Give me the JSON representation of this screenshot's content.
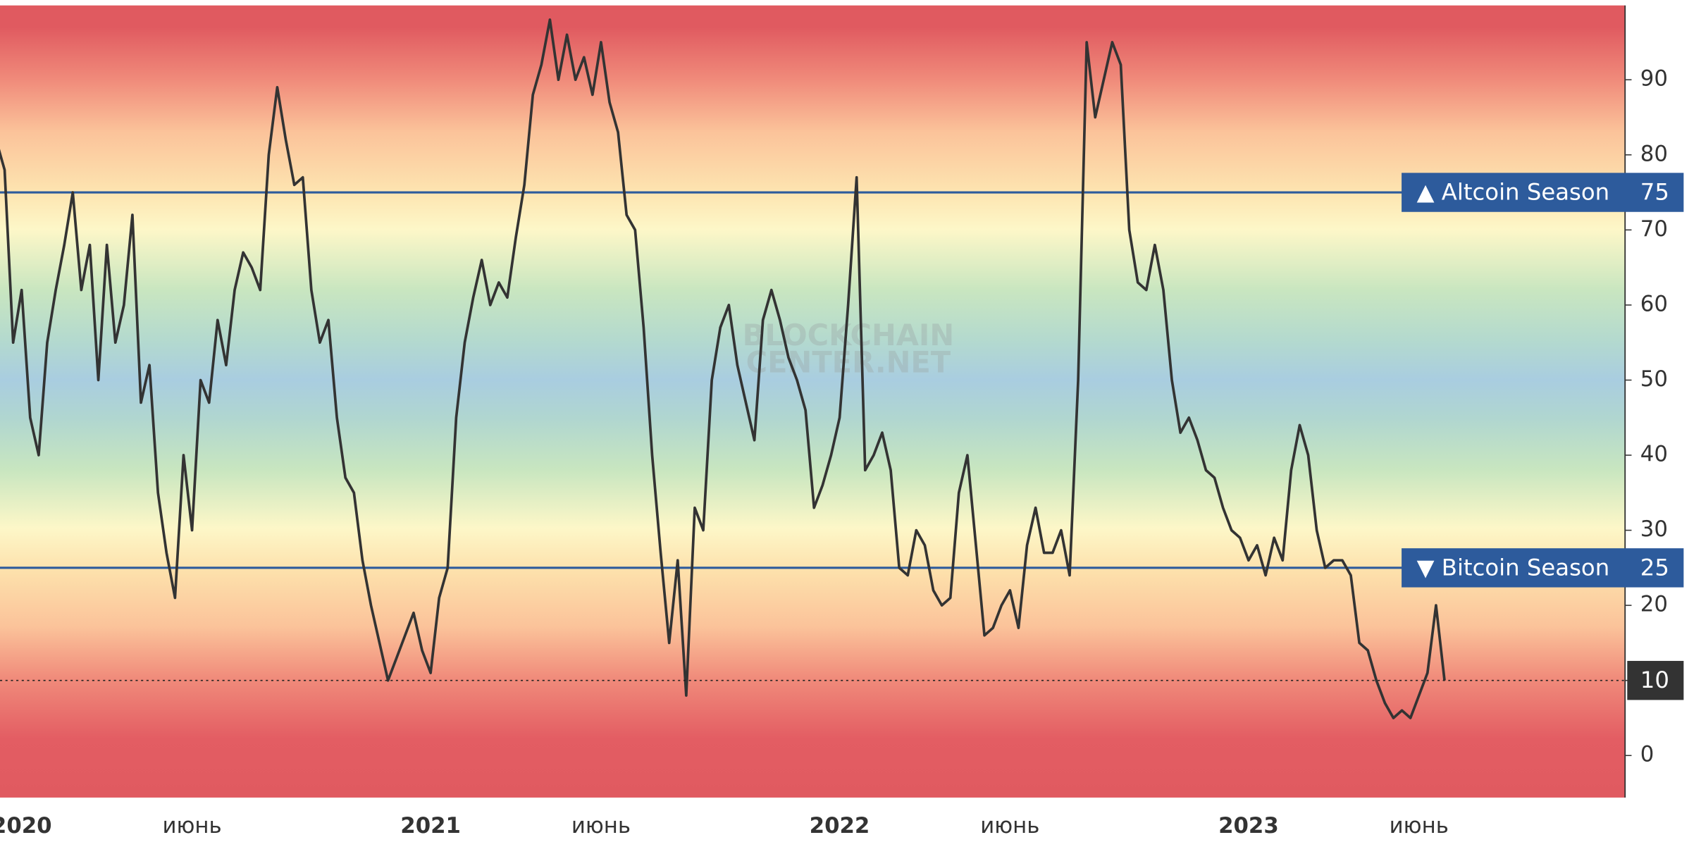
{
  "chart_data": {
    "type": "line",
    "categories": [
      null,
      null,
      null,
      "2020",
      null,
      null,
      null,
      null,
      null,
      null,
      null,
      null,
      null,
      null,
      null,
      null,
      null,
      null,
      null,
      null,
      null,
      null,
      null,
      "июнь",
      null,
      null,
      null,
      null,
      null,
      null,
      null,
      null,
      null,
      null,
      null,
      null,
      null,
      null,
      null,
      null,
      null,
      null,
      null,
      null,
      null,
      null,
      null,
      null,
      null,
      null,
      null,
      "2021",
      null,
      null,
      null,
      null,
      null,
      null,
      null,
      null,
      null,
      null,
      null,
      null,
      null,
      null,
      null,
      null,
      null,
      null,
      null,
      "июнь",
      null,
      null,
      null,
      null,
      null,
      null,
      null,
      null,
      null,
      null,
      null,
      null,
      null,
      null,
      null,
      null,
      null,
      null,
      null,
      null,
      null,
      null,
      null,
      null,
      null,
      null,
      null,
      "2022",
      null,
      null,
      null,
      null,
      null,
      null,
      null,
      null,
      null,
      null,
      null,
      null,
      null,
      null,
      null,
      null,
      null,
      null,
      null,
      "июнь",
      null,
      null,
      null,
      null,
      null,
      null,
      null,
      null,
      null,
      null,
      null,
      null,
      null,
      null,
      null,
      null,
      null,
      null,
      null,
      null,
      null,
      null,
      null,
      null,
      null,
      null,
      null,
      "2023",
      null,
      null,
      null,
      null,
      null,
      null,
      null,
      null,
      null,
      null,
      null,
      null,
      null,
      null,
      null,
      null,
      null,
      null,
      null,
      "июнь",
      null,
      null,
      null
    ],
    "values": [
      82,
      78,
      55,
      62,
      45,
      40,
      55,
      62,
      68,
      75,
      62,
      68,
      50,
      68,
      55,
      60,
      72,
      47,
      52,
      35,
      27,
      21,
      40,
      30,
      50,
      47,
      58,
      52,
      62,
      67,
      65,
      62,
      80,
      89,
      82,
      76,
      77,
      62,
      55,
      58,
      45,
      37,
      35,
      26,
      20,
      15,
      10,
      13,
      16,
      19,
      14,
      11,
      21,
      25,
      45,
      55,
      61,
      66,
      60,
      63,
      61,
      69,
      76,
      88,
      92,
      98,
      90,
      96,
      90,
      93,
      88,
      95,
      87,
      83,
      72,
      70,
      57,
      40,
      27,
      15,
      26,
      8,
      33,
      30,
      50,
      57,
      60,
      52,
      47,
      42,
      58,
      62,
      58,
      53,
      50,
      46,
      33,
      36,
      40,
      45,
      60,
      77,
      38,
      40,
      43,
      38,
      25,
      24,
      30,
      28,
      22,
      20,
      21,
      35,
      40,
      28,
      16,
      17,
      20,
      22,
      17,
      28,
      33,
      27,
      27,
      30,
      24,
      50,
      95,
      85,
      90,
      95,
      92,
      70,
      63,
      62,
      68,
      62,
      50,
      43,
      45,
      42,
      38,
      37,
      33,
      30,
      29,
      26,
      28,
      24,
      29,
      26,
      38,
      44,
      40,
      30,
      25,
      26,
      26,
      24,
      15,
      14,
      10,
      7,
      5,
      6,
      5,
      8,
      11,
      20,
      10
    ],
    "color": "#333333",
    "ylim": [
      -5.6,
      99.9
    ],
    "yticks": [
      0,
      10,
      20,
      30,
      40,
      50,
      60,
      70,
      80,
      90
    ],
    "reference_lines": [
      {
        "value": 75,
        "label": "▲ Altcoin Season",
        "color": "#2d5b9c"
      },
      {
        "value": 25,
        "label": "▼ Bitcoin Season",
        "color": "#2d5b9c"
      }
    ],
    "watermark": [
      "BLOCKCHAIN",
      "CENTER.NET"
    ]
  }
}
